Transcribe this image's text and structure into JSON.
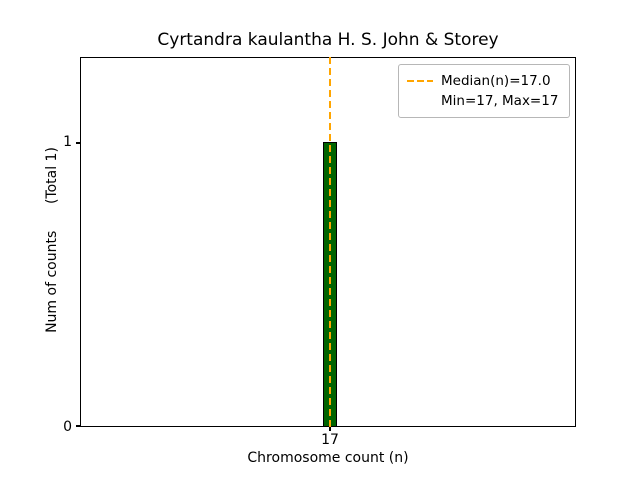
{
  "chart_data": {
    "type": "bar",
    "title": "Cyrtandra kaulantha H. S. John & Storey",
    "xlabel": "Chromosome count (n)",
    "ylabel": "Num of counts      (Total 1)",
    "categories": [
      17
    ],
    "values": [
      1
    ],
    "xticks": [
      "17"
    ],
    "yticks": [
      "0",
      "1"
    ],
    "ylim": [
      0,
      1.3
    ],
    "total": 1,
    "median": 17.0,
    "min": 17,
    "max": 17,
    "legend": [
      {
        "label": "Median(n)=17.0",
        "line": "dashed-orange"
      },
      {
        "label": "Min=17, Max=17",
        "line": "none"
      }
    ],
    "legend_position": "upper right",
    "grid": false,
    "colors": {
      "bar_fill": "#006400",
      "bar_edge": "#000000",
      "median_line": "#FFA500",
      "axes": "#000000",
      "background": "#ffffff"
    }
  }
}
